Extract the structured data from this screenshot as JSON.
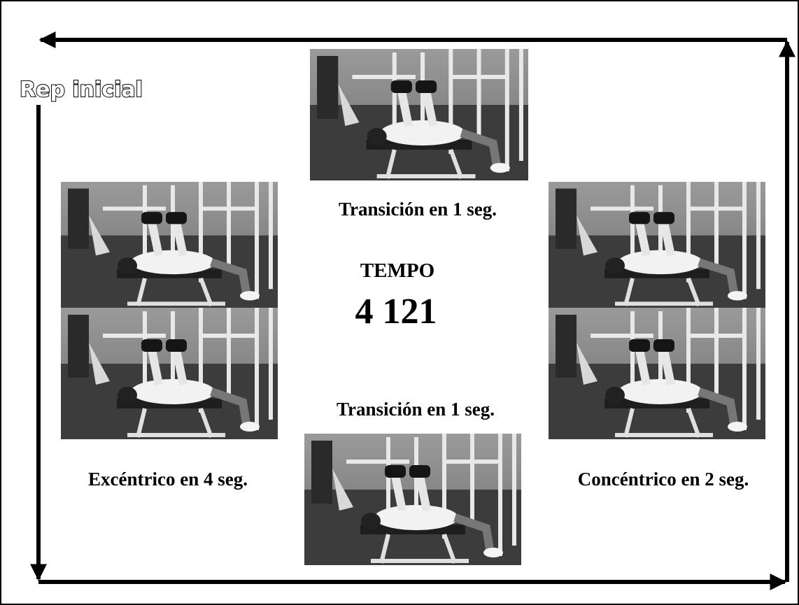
{
  "start_label": "Rep inicial",
  "center": {
    "title": "TEMPO",
    "tempo": "4 121"
  },
  "phases": {
    "top": "Transición en 1 seg.",
    "bottom": "Transición en 1 seg.",
    "left": "Excéntrico en 4 seg.",
    "right": "Concéntrico en 2 seg."
  }
}
